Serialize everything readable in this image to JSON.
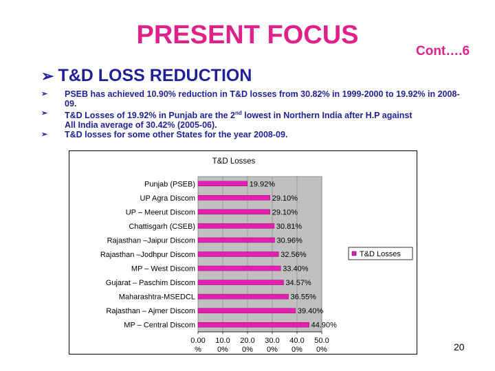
{
  "slide": {
    "title": "PRESENT FOCUS",
    "cont": "Cont….6",
    "heading": "T&D LOSS REDUCTION",
    "bullets": [
      "PSEB has achieved 10.90% reduction in T&D losses from 30.82% in 1999-2000 to 19.92% in 2008-09.",
      "All India average of 30.42% (2005-06).",
      "T&D losses for some other States for the year 2008-09."
    ],
    "bullet2": {
      "pre": "T&D Losses of 19.92% in Punjab are the 2",
      "sup": "nd",
      "post": " lowest in Northern India after H.P against"
    },
    "page_number": "20",
    "colors": {
      "title": "#e0218a",
      "text": "#1f1f9a",
      "bar": "#e61fb3",
      "plot_bg": "#c0c0c0"
    },
    "bullet_icon": "arrowhead-bullet-icon"
  },
  "chart_data": {
    "type": "bar",
    "orientation": "horizontal",
    "title": "T&D Losses",
    "categories": [
      "Punjab (PSEB)",
      "UP Agra Discom",
      "UP – Meerut Discom",
      "Chattisgarh (CSEB)",
      "Rajasthan –Jaipur Discom",
      "Rajasthan –Jodhpur Discom",
      "MP – West Discom",
      "Gujarat – Paschim Discom",
      "Maharashtra-MSEDCL",
      "Rajasthan – Ajmer Discom",
      "MP – Central Discom"
    ],
    "series": [
      {
        "name": "T&D Losses",
        "values": [
          19.92,
          29.1,
          29.1,
          30.81,
          30.96,
          32.56,
          33.4,
          34.57,
          36.55,
          39.4,
          44.9
        ],
        "labels": [
          "19.92%",
          "29.10%",
          "29.10%",
          "30.81%",
          "30.96%",
          "32.56%",
          "33.40%",
          "34.57%",
          "36.55%",
          "39.40%",
          "44.90%"
        ]
      }
    ],
    "xlim": [
      0,
      50
    ],
    "xticks": [
      0,
      10,
      20,
      30,
      40,
      50
    ],
    "xtick_labels_top": [
      "0.00",
      "10.0",
      "20.0",
      "30.0",
      "40.0",
      "50.0"
    ],
    "xtick_labels_bottom": [
      "%",
      "0%",
      "0%",
      "0%",
      "0%",
      "0%"
    ],
    "legend": "right",
    "grid": true
  }
}
